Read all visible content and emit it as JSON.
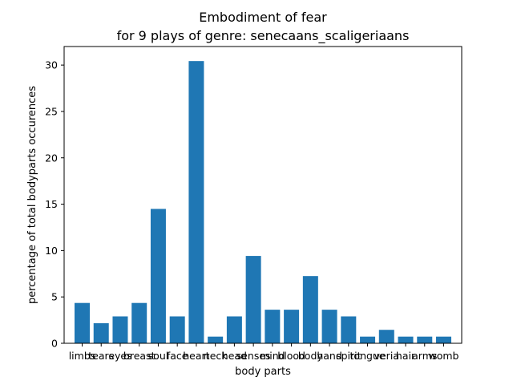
{
  "chart_data": {
    "type": "bar",
    "title": "Embodiment of fear",
    "subtitle": "for 9 plays of genre: senecaans_scaligeriaans",
    "xlabel": "body parts",
    "ylabel": "percentage of total bodyparts occurences",
    "categories": [
      "limbs",
      "tears",
      "eyes",
      "breast",
      "soul",
      "face",
      "heart",
      "neck",
      "head",
      "senses",
      "mind",
      "blood",
      "body",
      "hand",
      "spirit",
      "tongue",
      "veria",
      "hair",
      "arms",
      "womb"
    ],
    "values": [
      4.35,
      2.17,
      2.9,
      4.35,
      14.49,
      2.9,
      30.43,
      0.72,
      2.9,
      9.42,
      3.62,
      3.62,
      7.25,
      3.62,
      2.9,
      0.72,
      1.45,
      0.72,
      0.72,
      0.72
    ],
    "ylim": [
      0,
      32
    ],
    "yticks": [
      0,
      5,
      10,
      15,
      20,
      25,
      30
    ],
    "bar_color": "#1f77b4",
    "grid": false,
    "legend": "none"
  }
}
